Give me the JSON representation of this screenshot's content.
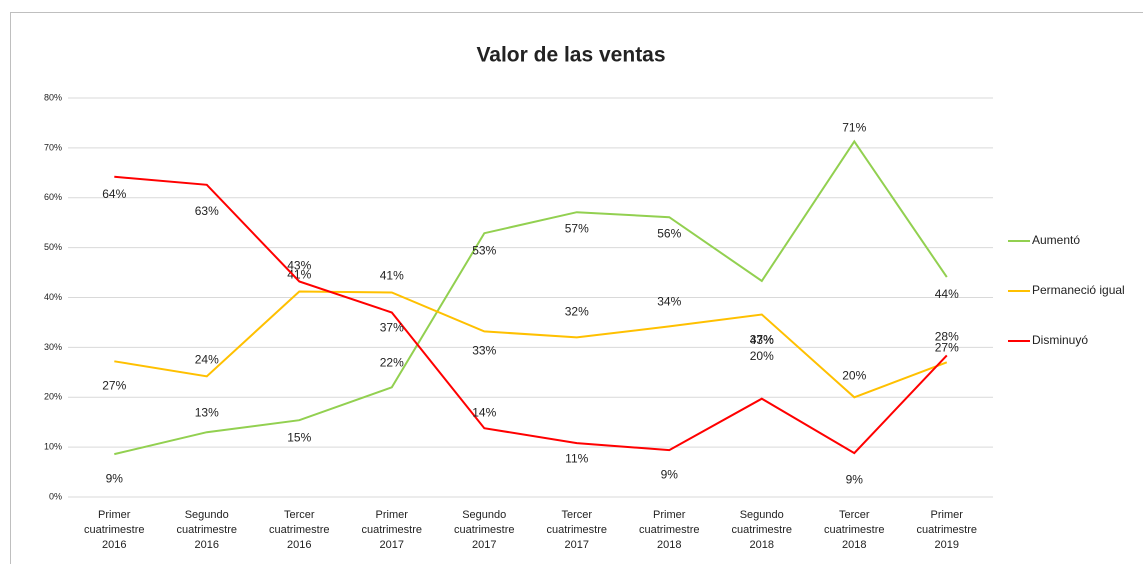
{
  "chart_data": {
    "type": "line",
    "title": "Valor de las ventas",
    "categories": [
      [
        "Primer",
        "cuatrimestre",
        "2016"
      ],
      [
        "Segundo",
        "cuatrimestre",
        "2016"
      ],
      [
        "Tercer",
        "cuatrimestre",
        "2016"
      ],
      [
        "Primer",
        "cuatrimestre",
        "2017"
      ],
      [
        "Segundo",
        "cuatrimestre",
        "2017"
      ],
      [
        "Tercer",
        "cuatrimestre",
        "2017"
      ],
      [
        "Primer",
        "cuatrimestre",
        "2018"
      ],
      [
        "Segundo",
        "cuatrimestre",
        "2018"
      ],
      [
        "Tercer",
        "cuatrimestre",
        "2018"
      ],
      [
        "Primer",
        "cuatrimestre",
        "2019"
      ]
    ],
    "series": [
      {
        "name": "Aumentó",
        "color": "#92d050",
        "values": [
          8.6,
          13,
          15.4,
          22,
          52.9,
          57.1,
          56.1,
          43.3,
          71.3,
          44.1
        ],
        "value_labels": [
          "9%",
          "13%",
          "15%",
          "22%",
          "53%",
          "57%",
          "56%",
          "43%",
          "71%",
          "44%"
        ]
      },
      {
        "name": "Permaneció igual",
        "color": "#ffc000",
        "values": [
          27.2,
          24.2,
          41.2,
          41,
          33.2,
          32,
          34.2,
          36.6,
          20,
          27
        ],
        "value_labels": [
          "27%",
          "24%",
          "41%",
          "41%",
          "33%",
          "32%",
          "34%",
          "37%",
          "20%",
          "27%"
        ]
      },
      {
        "name": "Disminuyó",
        "color": "#ff0000",
        "values": [
          64.2,
          62.6,
          43.2,
          37,
          13.8,
          10.8,
          9.4,
          19.7,
          8.8,
          28.4
        ],
        "value_labels": [
          "64%",
          "63%",
          "43%",
          "37%",
          "14%",
          "11%",
          "9%",
          "20%",
          "9%",
          "28%"
        ]
      }
    ],
    "ylim": [
      0,
      80
    ],
    "yticks": [
      {
        "value": 0,
        "label": "0%"
      },
      {
        "value": 10,
        "label": "10%"
      },
      {
        "value": 20,
        "label": "20%"
      },
      {
        "value": 30,
        "label": "30%"
      },
      {
        "value": 40,
        "label": "40%"
      },
      {
        "value": 50,
        "label": "50%"
      },
      {
        "value": 60,
        "label": "60%"
      },
      {
        "value": 70,
        "label": "70%"
      },
      {
        "value": 80,
        "label": "80%"
      }
    ],
    "grid": true,
    "legend": "right"
  }
}
